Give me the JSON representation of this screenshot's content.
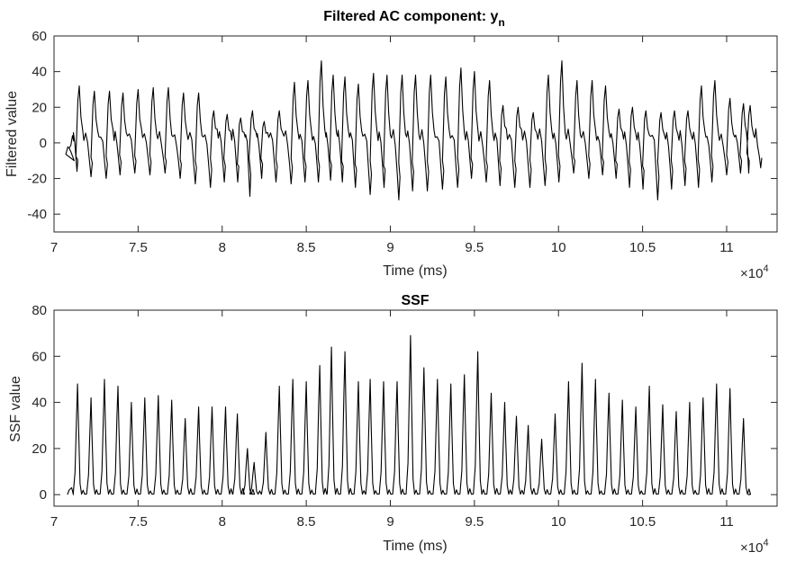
{
  "chart_data": [
    {
      "type": "line",
      "title": "Filtered AC component: y",
      "title_subscript": "n",
      "xlabel": "Time (ms)",
      "ylabel": "Filtered value",
      "xlim": [
        70000,
        113000
      ],
      "ylim": [
        -50,
        60
      ],
      "xticks": [
        70000,
        75000,
        80000,
        85000,
        90000,
        95000,
        100000,
        105000,
        110000
      ],
      "xtick_labels": [
        "7",
        "7.5",
        "8",
        "8.5",
        "9",
        "9.5",
        "10",
        "10.5",
        "11"
      ],
      "yticks": [
        -40,
        -20,
        0,
        20,
        40,
        60
      ],
      "ytick_labels": [
        "-40",
        "-20",
        "0",
        "20",
        "40",
        "60"
      ],
      "x_exponent": {
        "times": "×10",
        "power": "4"
      },
      "grid": false,
      "series": [
        {
          "color": "#000000",
          "x": [
            70900,
            71500,
            72400,
            73300,
            74100,
            75000,
            75900,
            76800,
            77700,
            78600,
            79500,
            80300,
            81100,
            81800,
            82500,
            83400,
            84300,
            85100,
            85900,
            86600,
            87300,
            88100,
            89000,
            89800,
            90700,
            91500,
            92400,
            93300,
            94200,
            95000,
            95900,
            96700,
            97600,
            98500,
            99400,
            100200,
            101100,
            102000,
            102800,
            103600,
            104400,
            105200,
            106100,
            106900,
            107700,
            108500,
            109300,
            110200,
            111000,
            111400
          ],
          "y": [
            -3,
            32,
            29,
            29,
            28,
            30,
            31,
            31,
            28,
            28,
            18,
            16,
            14,
            18,
            12,
            18,
            34,
            35,
            46,
            38,
            37,
            33,
            39,
            38,
            38,
            38,
            38,
            37,
            42,
            40,
            35,
            21,
            20,
            17,
            38,
            46,
            35,
            35,
            32,
            19,
            20,
            18,
            17,
            18,
            18,
            32,
            35,
            25,
            22,
            21
          ],
          "y_min": [
            -16,
            -19,
            -20,
            -18,
            -17,
            -18,
            -17,
            -20,
            -23,
            -25,
            -22,
            -22,
            -30,
            -20,
            -22,
            -23,
            -22,
            -22,
            -21,
            -22,
            -25,
            -29,
            -25,
            -32,
            -27,
            -27,
            -26,
            -25,
            -20,
            -22,
            -24,
            -25,
            -25,
            -24,
            -22,
            -17,
            -20,
            -18,
            -20,
            -25,
            -26,
            -32,
            -26,
            -24,
            -25,
            -22,
            -18,
            -17,
            -17,
            -14
          ]
        }
      ]
    },
    {
      "type": "line",
      "title": "SSF",
      "xlabel": "Time (ms)",
      "ylabel": "SSF value",
      "xlim": [
        70000,
        113000
      ],
      "ylim": [
        -5,
        80
      ],
      "xticks": [
        70000,
        75000,
        80000,
        85000,
        90000,
        95000,
        100000,
        105000,
        110000
      ],
      "xtick_labels": [
        "7",
        "7.5",
        "8",
        "8.5",
        "9",
        "9.5",
        "10",
        "10.5",
        "11"
      ],
      "yticks": [
        0,
        20,
        40,
        60,
        80
      ],
      "ytick_labels": [
        "0",
        "20",
        "40",
        "60",
        "80"
      ],
      "x_exponent": {
        "times": "×10",
        "power": "4"
      },
      "grid": false,
      "series": [
        {
          "color": "#000000",
          "x": [
            71400,
            72200,
            73000,
            73800,
            74600,
            75400,
            76200,
            77000,
            77800,
            78600,
            79400,
            80200,
            80900,
            81500,
            81900,
            82600,
            83400,
            84200,
            85000,
            85800,
            86500,
            87300,
            88100,
            88800,
            89600,
            90400,
            91200,
            92000,
            92800,
            93600,
            94400,
            95200,
            96000,
            96800,
            97500,
            98200,
            99000,
            99800,
            100600,
            101400,
            102200,
            103000,
            103800,
            104600,
            105400,
            106200,
            107000,
            107800,
            108600,
            109400,
            110200,
            111000
          ],
          "y": [
            48,
            42,
            50,
            47,
            40,
            42,
            43,
            41,
            33,
            38,
            38,
            38,
            35,
            20,
            14,
            27,
            47,
            50,
            49,
            56,
            64,
            62,
            49,
            50,
            49,
            49,
            69,
            55,
            50,
            48,
            52,
            62,
            44,
            40,
            34,
            30,
            24,
            35,
            49,
            57,
            50,
            44,
            41,
            38,
            47,
            39,
            36,
            40,
            42,
            48,
            46,
            33
          ]
        }
      ]
    }
  ]
}
